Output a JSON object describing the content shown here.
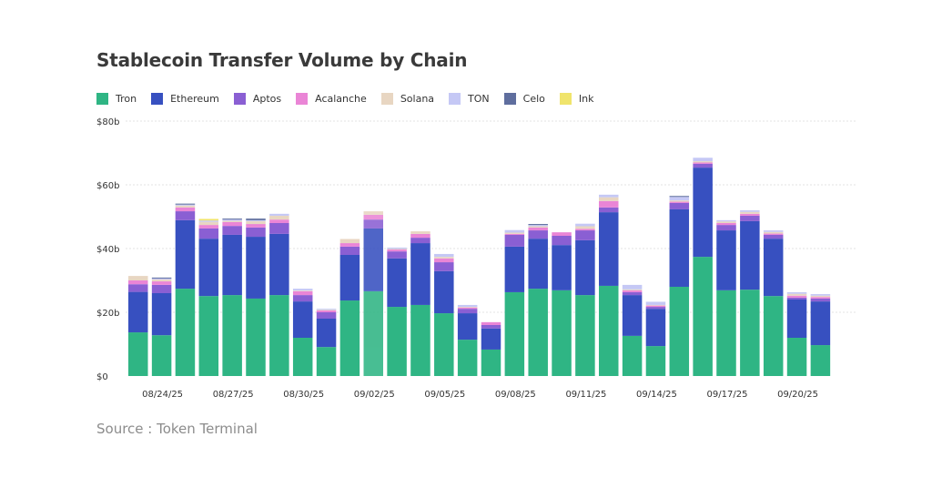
{
  "title": "Stablecoin Transfer Volume by Chain",
  "source": "Source : Token Terminal",
  "chart_data": {
    "type": "bar",
    "stacked": true,
    "title": "Stablecoin Transfer Volume by Chain",
    "xlabel": "",
    "ylabel": "",
    "ylim": [
      0,
      80
    ],
    "y_unit": "$ billions",
    "y_ticks": [
      "$0",
      "$20b",
      "$40b",
      "$60b",
      "$80b"
    ],
    "y_tick_values": [
      0,
      20,
      40,
      60,
      80
    ],
    "grid": true,
    "legend_position": "top-left",
    "highlighted_category": "09/02/25",
    "categories": [
      "08/23/25",
      "08/24/25",
      "08/25/25",
      "08/26/25",
      "08/27/25",
      "08/28/25",
      "08/29/25",
      "08/30/25",
      "08/31/25",
      "09/01/25",
      "09/02/25",
      "09/03/25",
      "09/04/25",
      "09/05/25",
      "09/06/25",
      "09/07/25",
      "09/08/25",
      "09/09/25",
      "09/10/25",
      "09/11/25",
      "09/12/25",
      "09/13/25",
      "09/14/25",
      "09/15/25",
      "09/16/25",
      "09/17/25",
      "09/18/25",
      "09/19/25",
      "09/20/25",
      "09/21/25"
    ],
    "x_tick_labels": [
      "08/24/25",
      "08/27/25",
      "08/30/25",
      "09/02/25",
      "09/05/25",
      "09/08/25",
      "09/11/25",
      "09/14/25",
      "09/17/25",
      "09/20/25"
    ],
    "series": [
      {
        "name": "Tron",
        "color": "#2fb584",
        "values": [
          13.7,
          12.8,
          27.4,
          25.1,
          25.4,
          24.3,
          25.4,
          12.0,
          9.1,
          23.7,
          26.6,
          21.7,
          22.3,
          19.7,
          11.4,
          8.3,
          26.3,
          27.4,
          26.9,
          25.4,
          28.3,
          12.6,
          9.4,
          28.0,
          37.4,
          26.9,
          27.1,
          25.1,
          12.0,
          9.7
        ]
      },
      {
        "name": "Ethereum",
        "color": "#3750c0",
        "values": [
          12.7,
          13.2,
          21.5,
          18.0,
          18.9,
          19.4,
          19.2,
          11.4,
          8.9,
          14.3,
          19.7,
          15.2,
          19.4,
          13.2,
          8.3,
          6.6,
          14.3,
          15.7,
          14.2,
          17.2,
          23.1,
          12.8,
          11.7,
          24.3,
          28.0,
          18.8,
          21.5,
          18.0,
          12.0,
          13.7
        ]
      },
      {
        "name": "Aptos",
        "color": "#8a5fd3",
        "values": [
          2.4,
          2.6,
          2.8,
          3.2,
          2.8,
          2.9,
          3.4,
          2.0,
          2.0,
          2.6,
          2.8,
          2.2,
          1.7,
          2.8,
          1.4,
          1.1,
          3.7,
          2.6,
          2.9,
          3.1,
          1.5,
          0.9,
          0.6,
          2.0,
          1.2,
          1.7,
          1.7,
          1.2,
          0.6,
          0.9
        ]
      },
      {
        "name": "Acalanche",
        "color": "#ea85d6",
        "values": [
          1.2,
          1.1,
          1.2,
          1.1,
          1.2,
          1.1,
          1.1,
          1.2,
          0.6,
          1.1,
          1.5,
          0.6,
          1.2,
          1.2,
          0.4,
          0.9,
          0.3,
          0.9,
          1.1,
          0.5,
          2.0,
          0.6,
          0.4,
          0.4,
          0.4,
          0.6,
          0.6,
          0.4,
          0.6,
          0.5
        ]
      },
      {
        "name": "Solana",
        "color": "#e8d6c2",
        "values": [
          1.4,
          0.6,
          0.6,
          1.0,
          0.4,
          0.9,
          1.2,
          0.2,
          0.2,
          1.3,
          1.1,
          0.2,
          0.8,
          0.5,
          0.2,
          0.0,
          0.4,
          0.4,
          0.0,
          0.8,
          1.2,
          0.3,
          0.2,
          0.4,
          0.4,
          0.5,
          0.6,
          0.5,
          0.6,
          0.4
        ]
      },
      {
        "name": "TON",
        "color": "#c5c8f5",
        "values": [
          0.0,
          0.3,
          0.3,
          0.4,
          0.4,
          0.3,
          0.6,
          0.6,
          0.3,
          0.0,
          0.0,
          0.4,
          0.0,
          0.9,
          0.6,
          0.0,
          0.8,
          0.4,
          0.0,
          0.8,
          0.8,
          1.4,
          1.0,
          1.1,
          1.1,
          0.4,
          0.5,
          0.5,
          0.5,
          0.5
        ]
      },
      {
        "name": "Celo",
        "color": "#5f6e9e",
        "values": [
          0.0,
          0.3,
          0.3,
          0.0,
          0.3,
          0.5,
          0.0,
          0.0,
          0.0,
          0.0,
          0.0,
          0.0,
          0.0,
          0.0,
          0.0,
          0.0,
          0.0,
          0.3,
          0.0,
          0.0,
          0.0,
          0.0,
          0.0,
          0.3,
          0.0,
          0.0,
          0.0,
          0.0,
          0.0,
          0.0
        ]
      },
      {
        "name": "Ink",
        "color": "#f0e46c",
        "values": [
          0.0,
          0.0,
          0.0,
          0.5,
          0.0,
          0.0,
          0.0,
          0.0,
          0.0,
          0.0,
          0.0,
          0.0,
          0.0,
          0.0,
          0.0,
          0.0,
          0.0,
          0.0,
          0.0,
          0.0,
          0.0,
          0.0,
          0.0,
          0.0,
          0.0,
          0.0,
          0.0,
          0.0,
          0.0,
          0.0
        ]
      }
    ]
  }
}
